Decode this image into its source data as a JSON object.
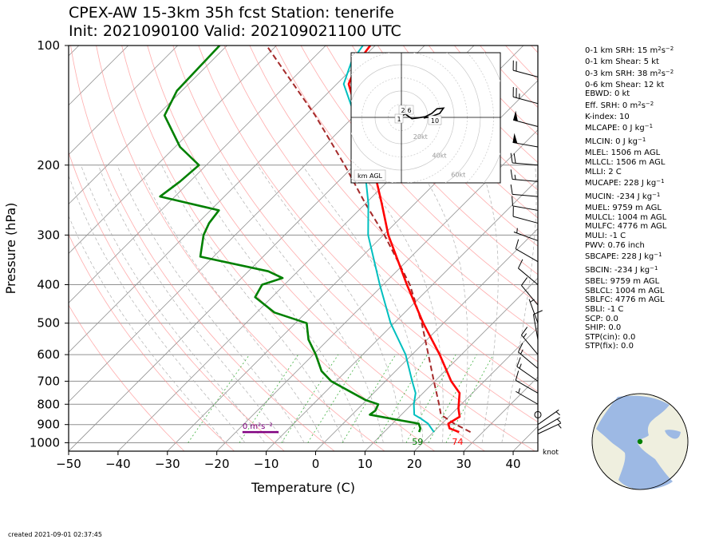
{
  "header": {
    "title_line1": "CPEX-AW 15-3km  35h fcst  Station: tenerife",
    "title_line2": "Init: 2021090100  Valid: 202109021100 UTC"
  },
  "footer": {
    "created": "created 2021-09-01 02:37:45"
  },
  "colors": {
    "temperature": "#ff0000",
    "dewpoint": "#008000",
    "wetbulb": "#00bfbf",
    "parcel": "#a52a2a",
    "srh_bar": "#800080",
    "dry_adiabat": "#ff9090",
    "moist_adiabat": "#b0b0b0",
    "mixing_ratio": "#40b040",
    "isotherm": "#909090"
  },
  "indices": [
    {
      "pre": "0-1 km SRH: 15 m",
      "sup1": "2",
      "mid": "s",
      "sup2": "−2"
    },
    {
      "pre": "0-1 km Shear: 5 kt"
    },
    {
      "pre": "0-3 km SRH: 38 m",
      "sup1": "2",
      "mid": "s",
      "sup2": "−2"
    },
    {
      "pre": "0-6 km Shear: 12 kt"
    },
    {
      "pre": "EBWD: 0 kt"
    },
    {
      "pre": "Eff. SRH: 0 m",
      "sup1": "2",
      "mid": "s",
      "sup2": "−2"
    },
    {
      "pre": "K-index: 10"
    },
    {
      "pre": "MLCAPE: 0 J kg",
      "sup1": "−1"
    },
    {
      "pre": "MLCIN: 0 J kg",
      "sup1": "−1"
    },
    {
      "pre": "MLEL: 1506 m AGL"
    },
    {
      "pre": "MLLCL: 1506 m AGL"
    },
    {
      "pre": "MLLI: 2 C"
    },
    {
      "pre": "MUCAPE: 228 J kg",
      "sup1": "−1"
    },
    {
      "pre": "MUCIN: -234 J kg",
      "sup1": "−1"
    },
    {
      "pre": "MUEL: 9759 m AGL"
    },
    {
      "pre": "MULCL: 1004 m AGL"
    },
    {
      "pre": "MULFC: 4776 m AGL"
    },
    {
      "pre": "MULI: -1 C"
    },
    {
      "pre": "PWV: 0.76 inch"
    },
    {
      "pre": "SBCAPE: 228 J kg",
      "sup1": "−1"
    },
    {
      "pre": "SBCIN: -234 J kg",
      "sup1": "−1"
    },
    {
      "pre": "SBEL: 9759 m AGL"
    },
    {
      "pre": "SBLCL: 1004 m AGL"
    },
    {
      "pre": "SBLFC: 4776 m AGL"
    },
    {
      "pre": "SBLI: -1 C"
    },
    {
      "pre": "SCP: 0.0"
    },
    {
      "pre": "SHIP: 0.0"
    },
    {
      "pre": "STP(cin): 0.0"
    },
    {
      "pre": "STP(fix): 0.0"
    }
  ],
  "chart_data": {
    "type": "skew-t",
    "xlabel": "Temperature (C)",
    "ylabel": "Pressure (hPa)",
    "xlim": [
      -50,
      45
    ],
    "ylim_hpa": [
      1050,
      100
    ],
    "x_ticks": [
      -50,
      -40,
      -30,
      -20,
      -10,
      0,
      10,
      20,
      30,
      40
    ],
    "y_ticks": [
      100,
      200,
      300,
      400,
      500,
      600,
      700,
      800,
      900,
      1000
    ],
    "temperature": [
      {
        "p": 940,
        "t": 25.2
      },
      {
        "p": 920,
        "t": 22.5
      },
      {
        "p": 895,
        "t": 21.3
      },
      {
        "p": 860,
        "t": 22.2
      },
      {
        "p": 820,
        "t": 20.3
      },
      {
        "p": 750,
        "t": 17.4
      },
      {
        "p": 700,
        "t": 13.3
      },
      {
        "p": 600,
        "t": 5.6
      },
      {
        "p": 500,
        "t": -4.1
      },
      {
        "p": 400,
        "t": -15.2
      },
      {
        "p": 300,
        "t": -29.0
      },
      {
        "p": 250,
        "t": -36.7
      },
      {
        "p": 200,
        "t": -46.3
      },
      {
        "p": 170,
        "t": -53.5
      },
      {
        "p": 150,
        "t": -59.4
      },
      {
        "p": 125,
        "t": -67.6
      },
      {
        "p": 110,
        "t": -70.2
      },
      {
        "p": 100,
        "t": -71.0
      }
    ],
    "dewpoint": [
      {
        "p": 940,
        "t": 17.1
      },
      {
        "p": 920,
        "t": 16.6
      },
      {
        "p": 895,
        "t": 15.3
      },
      {
        "p": 875,
        "t": 10.1
      },
      {
        "p": 850,
        "t": 3.6
      },
      {
        "p": 830,
        "t": 3.9
      },
      {
        "p": 800,
        "t": 3.2
      },
      {
        "p": 780,
        "t": -0.3
      },
      {
        "p": 700,
        "t": -11.0
      },
      {
        "p": 660,
        "t": -15.0
      },
      {
        "p": 600,
        "t": -19.5
      },
      {
        "p": 550,
        "t": -24.0
      },
      {
        "p": 500,
        "t": -27.7
      },
      {
        "p": 470,
        "t": -36.4
      },
      {
        "p": 430,
        "t": -43.4
      },
      {
        "p": 400,
        "t": -44.5
      },
      {
        "p": 385,
        "t": -41.7
      },
      {
        "p": 370,
        "t": -46.0
      },
      {
        "p": 340,
        "t": -62.7
      },
      {
        "p": 300,
        "t": -66.4
      },
      {
        "p": 280,
        "t": -67.7
      },
      {
        "p": 260,
        "t": -68.3
      },
      {
        "p": 240,
        "t": -83.0
      },
      {
        "p": 220,
        "t": -82.0
      },
      {
        "p": 200,
        "t": -81.5
      },
      {
        "p": 180,
        "t": -89.0
      },
      {
        "p": 150,
        "t": -98.5
      },
      {
        "p": 130,
        "t": -101.0
      },
      {
        "p": 100,
        "t": -101.5
      }
    ],
    "wetbulb": [
      {
        "p": 940,
        "t": 20.1
      },
      {
        "p": 895,
        "t": 17.2
      },
      {
        "p": 870,
        "t": 14.8
      },
      {
        "p": 850,
        "t": 12.6
      },
      {
        "p": 800,
        "t": 10.4
      },
      {
        "p": 750,
        "t": 8.5
      },
      {
        "p": 700,
        "t": 5.4
      },
      {
        "p": 600,
        "t": -1.3
      },
      {
        "p": 500,
        "t": -10.7
      },
      {
        "p": 400,
        "t": -20.7
      },
      {
        "p": 300,
        "t": -33.1
      },
      {
        "p": 250,
        "t": -39.4
      },
      {
        "p": 200,
        "t": -48.0
      },
      {
        "p": 170,
        "t": -54.5
      },
      {
        "p": 150,
        "t": -60.0
      },
      {
        "p": 125,
        "t": -68.6
      },
      {
        "p": 110,
        "t": -71.5
      },
      {
        "p": 100,
        "t": -72.5
      }
    ],
    "parcel": [
      {
        "p": 940,
        "t": 27.5
      },
      {
        "p": 895,
        "t": 22.5
      },
      {
        "p": 850,
        "t": 18.0
      },
      {
        "p": 800,
        "t": 15.5
      },
      {
        "p": 700,
        "t": 9.8
      },
      {
        "p": 600,
        "t": 3.3
      },
      {
        "p": 500,
        "t": -4.4
      },
      {
        "p": 400,
        "t": -14.6
      },
      {
        "p": 300,
        "t": -29.8
      },
      {
        "p": 250,
        "t": -40.0
      },
      {
        "p": 200,
        "t": -52.0
      },
      {
        "p": 150,
        "t": -68.0
      },
      {
        "p": 100,
        "t": -92.0
      }
    ],
    "surface_labels": {
      "temperature": "74",
      "dewpoint": "59"
    },
    "srh_bar": {
      "label": "0 m²s⁻²",
      "value": 0
    },
    "wind_unit": "knot",
    "wind_barbs": [
      {
        "p": 120,
        "spd": 20,
        "dir": 285
      },
      {
        "p": 140,
        "spd": 25,
        "dir": 285
      },
      {
        "p": 160,
        "spd": 50,
        "dir": 285
      },
      {
        "p": 180,
        "spd": 50,
        "dir": 280
      },
      {
        "p": 200,
        "spd": 20,
        "dir": 275
      },
      {
        "p": 220,
        "spd": 15,
        "dir": 275
      },
      {
        "p": 240,
        "spd": 10,
        "dir": 275
      },
      {
        "p": 260,
        "spd": 10,
        "dir": 280
      },
      {
        "p": 280,
        "spd": 10,
        "dir": 285
      },
      {
        "p": 310,
        "spd": 5,
        "dir": 290
      },
      {
        "p": 350,
        "spd": 10,
        "dir": 300
      },
      {
        "p": 400,
        "spd": 10,
        "dir": 310
      },
      {
        "p": 450,
        "spd": 10,
        "dir": 320
      },
      {
        "p": 500,
        "spd": 5,
        "dir": 340
      },
      {
        "p": 550,
        "spd": 10,
        "dir": 350
      },
      {
        "p": 600,
        "spd": 15,
        "dir": 320
      },
      {
        "p": 650,
        "spd": 15,
        "dir": 310
      },
      {
        "p": 700,
        "spd": 15,
        "dir": 305
      },
      {
        "p": 750,
        "spd": 10,
        "dir": 300
      },
      {
        "p": 800,
        "spd": 5,
        "dir": 300
      },
      {
        "p": 850,
        "spd": 0,
        "dir": 0
      },
      {
        "p": 900,
        "spd": 5,
        "dir": 55
      },
      {
        "p": 930,
        "spd": 5,
        "dir": 60
      },
      {
        "p": 950,
        "spd": 5,
        "dir": 65
      }
    ],
    "hodograph": {
      "unit_label": "km AGL",
      "ring_labels": [
        "20kt",
        "40kt",
        "60kt",
        "80kt"
      ],
      "height_labels": [
        "1",
        "2",
        "6",
        "10"
      ],
      "points_kt": [
        [
          -2.0,
          0.5
        ],
        [
          1.0,
          1.5
        ],
        [
          3.0,
          2.5
        ],
        [
          5.0,
          1.0
        ],
        [
          8.0,
          -1.0
        ],
        [
          12.0,
          -0.5
        ],
        [
          18.0,
          0.5
        ],
        [
          23.0,
          3.0
        ],
        [
          27.0,
          6.5
        ],
        [
          32.0,
          7.0
        ],
        [
          29.0,
          3.0
        ],
        [
          22.0,
          0.5
        ],
        [
          17.0,
          -0.5
        ]
      ]
    }
  }
}
